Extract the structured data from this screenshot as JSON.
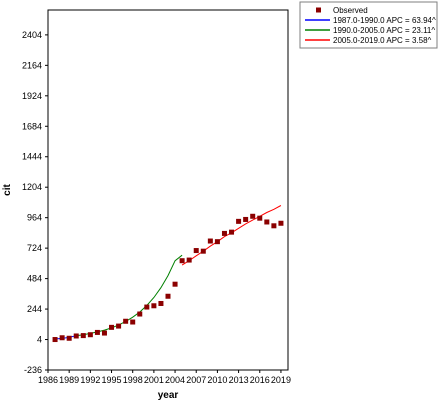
{
  "chart_data": {
    "type": "scatter",
    "xlabel": "year",
    "ylabel": "cit",
    "xlim": [
      1986,
      2020
    ],
    "ylim": [
      -236,
      2600
    ],
    "xticks": [
      1986,
      1989,
      1992,
      1995,
      1998,
      2001,
      2004,
      2007,
      2010,
      2013,
      2016,
      2019
    ],
    "yticks": [
      -236,
      4,
      244,
      484,
      724,
      964,
      1204,
      1444,
      1684,
      1924,
      2164,
      2404
    ],
    "grid": false,
    "legend_position": "top-right",
    "series": [
      {
        "name": "Observed",
        "kind": "points",
        "color": "#8b0000",
        "x": [
          1987,
          1988,
          1989,
          1990,
          1991,
          1992,
          1993,
          1994,
          1995,
          1996,
          1997,
          1998,
          1999,
          2000,
          2001,
          2002,
          2003,
          2004,
          2005,
          2006,
          2007,
          2008,
          2009,
          2010,
          2011,
          2012,
          2013,
          2014,
          2015,
          2016,
          2017,
          2018,
          2019
        ],
        "y": [
          4,
          18,
          14,
          32,
          35,
          42,
          60,
          55,
          100,
          110,
          148,
          142,
          205,
          260,
          270,
          288,
          345,
          440,
          625,
          630,
          705,
          700,
          780,
          775,
          840,
          850,
          935,
          950,
          975,
          960,
          930,
          900,
          920
        ]
      },
      {
        "name": "1987.0-1990.0 APC  = 63.94^",
        "kind": "line",
        "color": "#0000ff",
        "x": [
          1987,
          1988,
          1989,
          1990
        ],
        "y": [
          8,
          13,
          21,
          34
        ]
      },
      {
        "name": "1990.0-2005.0 APC  = 23.11^",
        "kind": "line",
        "color": "#008000",
        "x": [
          1990,
          1991,
          1992,
          1993,
          1994,
          1995,
          1996,
          1997,
          1998,
          1999,
          2000,
          2001,
          2002,
          2003,
          2004,
          2005
        ],
        "y": [
          34,
          42,
          52,
          64,
          78,
          96,
          118,
          146,
          180,
          221,
          272,
          335,
          412,
          508,
          625,
          668
        ]
      },
      {
        "name": "2005.0-2019.0 APC  = 3.58^",
        "kind": "line",
        "color": "#ff0000",
        "x": [
          2005,
          2006,
          2007,
          2008,
          2009,
          2010,
          2011,
          2012,
          2013,
          2014,
          2015,
          2016,
          2017,
          2018,
          2019
        ],
        "y": [
          590,
          626,
          664,
          700,
          740,
          775,
          815,
          845,
          880,
          915,
          945,
          975,
          1005,
          1030,
          1060
        ]
      }
    ]
  }
}
